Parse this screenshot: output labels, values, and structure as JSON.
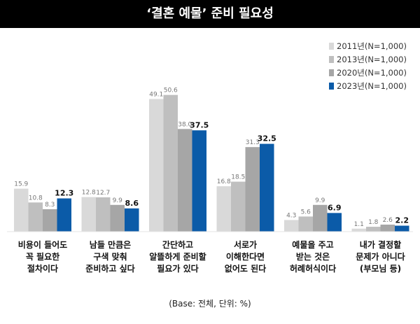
{
  "chart_data": {
    "type": "bar",
    "title": "‘결혼 예물’ 준비 필요성",
    "categories": [
      [
        "비용이 들어도",
        "꼭 필요한",
        "절차이다"
      ],
      [
        "남들 만큼은",
        "구색 맞춰",
        "준비하고 싶다"
      ],
      [
        "간단하고",
        "알뜰하게 준비할",
        "필요가 있다"
      ],
      [
        "서로가",
        "이해한다면",
        "없어도 된다"
      ],
      [
        "예물을 주고",
        "받는 것은",
        "허례허식이다"
      ],
      [
        "내가 결정할",
        "문제가 아니다",
        "(부모님 등)"
      ]
    ],
    "series": [
      {
        "name": "2011년(N=1,000)",
        "color": "#d9d9d9",
        "values": [
          15.9,
          12.8,
          49.1,
          16.8,
          4.3,
          1.1
        ]
      },
      {
        "name": "2013년(N=1,000)",
        "color": "#bfbfbf",
        "values": [
          10.8,
          12.7,
          50.6,
          18.5,
          5.6,
          1.8
        ]
      },
      {
        "name": "2020년(N=1,000)",
        "color": "#a6a6a6",
        "values": [
          8.3,
          9.9,
          38.0,
          31.3,
          9.9,
          2.6
        ]
      },
      {
        "name": "2023년(N=1,000)",
        "color": "#0b5ba8",
        "values": [
          12.3,
          8.6,
          37.5,
          32.5,
          6.9,
          2.2
        ]
      }
    ],
    "ylim": [
      0,
      55
    ],
    "legend_position": "top-right",
    "grid": false,
    "footnote": "(Base: 전체, 단위: %)"
  }
}
